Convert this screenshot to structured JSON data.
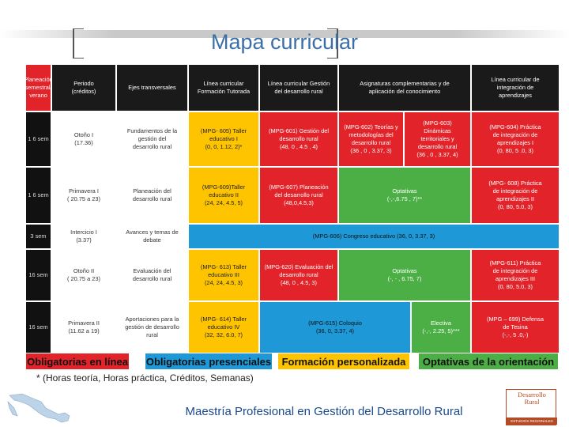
{
  "title": "Mapa curricular",
  "headers": {
    "planeacion": "Planeación\nsemestral/\nverano",
    "periodo": "Periodo\n(créditos)",
    "ejes": "Ejes transversales",
    "formacion": "Línea curricular\nFormación Tutorada",
    "gestion": "Línea curricular Gestión\ndel desarrollo rural",
    "asignaturas": "Asignaturas complementarias y de\naplicación del conocimiento",
    "integracion": "Línea curricular de\nintegración de\naprendizajes"
  },
  "rows": [
    {
      "sem": "1 6 sem",
      "periodo": "Otoño I\n(17.36)",
      "eje": "Fundamentos de la\ngestión del\ndesarrollo rural",
      "formacion": "(MPG- 605) Taller\neducativo I\n(0, 0, 1.12, 2)*",
      "gestion": "(MPG-601) Gestión del\ndesarrollo rural\n(48, 0 , 4.5 , 4)",
      "comp_a": "(MPG-602) Teorías y\nmetodologías del\ndesarrollo rural\n(36 , 0 , 3.37, 3)",
      "comp_b": "(MPG-603)\nDinámicas\nterritoriales y\ndesarrollo rural\n(36 , 0 , 3.37, 4)",
      "integracion": "(MPG-604) Práctica\nde integración de\naprendizajes I\n(0, 80, 5 .0, 3)"
    },
    {
      "sem": "1 6 sem",
      "periodo": "Primavera I\n( 20.75 a 23)",
      "eje": "Planeación del\ndesarrollo rural",
      "formacion": "(MPG-609)Taller\neducativo II\n(24, 24, 4.5, 5)",
      "gestion": "(MPG-607) Planeación\ndel desarrollo rural\n(48,0,4.5,3)",
      "comp": "Optativas\n(-,-,6.75 , 7)**",
      "integracion": "(MPG- 608) Práctica\nde integración de\naprendizajes II\n(0, 80, 5.0, 3)"
    },
    {
      "sem": "3 sem",
      "periodo": "Intercicio I\n(3.37)",
      "eje": "Avances y temas de\ndebate",
      "wide": "(MPG-606) Congreso educativo (36, 0, 3.37, 3)"
    },
    {
      "sem": "16 sem",
      "periodo": "Otoño II\n( 20.75 a 23)",
      "eje": "Evaluación del\ndesarrollo rural",
      "formacion": "(MPG- 613) Taller\neducativo III\n(24, 24, 4.5, 3)",
      "gestion": "(MPG-620) Evaluación del\ndesarrollo rural\n(48, 0 , 4.5, 3)",
      "comp": "Optativas\n(-, - , 6.75, 7)",
      "integracion": "(MPG-611) Práctica\nde integración de\naprendizajes III\n(0, 80, 5.0, 3)"
    },
    {
      "sem": "16 sem",
      "periodo": "Primavera II\n(11.62 a 19)",
      "eje": "Aportaciones para la\ngestión de desarrollo\nrural",
      "formacion": "(MPG- 614) Taller\neducativo IV\n(32, 32, 6.0, 7)",
      "coloquio": "(MPG-615) Coloquio\n(36, 0, 3.37, 4)",
      "electiva": "Electiva\n(-,-, 2.25, 5)***",
      "integracion": "(MPG – 699) Defensa\nde Tesina\n(-,-, 5 .0,-)"
    }
  ],
  "legend": {
    "obligatorias_linea": "Obligatorias en línea",
    "obligatorias_presenciales": "Obligatorias presenciales",
    "formacion_personalizada": "Formación personalizada",
    "optativas": "Optativas de la orientación"
  },
  "footnote": "* (Horas teoría, Horas práctica, Créditos, Semanas)",
  "footer_title": "Maestría Profesional en Gestión del Desarrollo Rural",
  "logo": {
    "line1": "Desarrollo",
    "line2": "Rural",
    "bar": "ESTUDIOS REGIONALES"
  },
  "colors": {
    "red": "#e2232a",
    "yellow": "#ffc400",
    "blue": "#1e98d6",
    "green": "#4caf45",
    "dark": "#1a1a1a",
    "title_blue": "#3c6fa8"
  }
}
